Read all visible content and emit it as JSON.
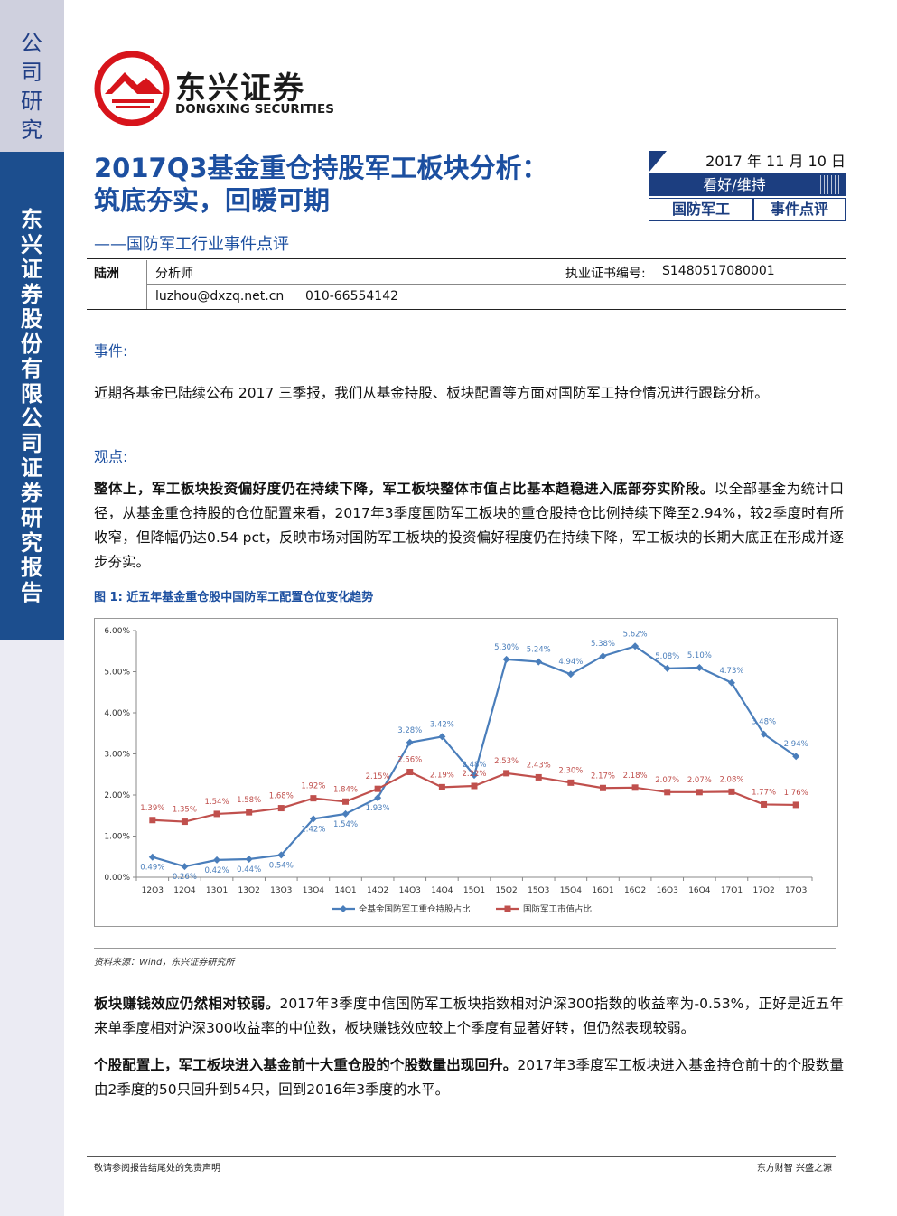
{
  "sidebar": {
    "top_label": "公司研究",
    "company_label": "东兴证券股份有限公司证券研究报告"
  },
  "brand": {
    "name_cn": "东兴证券",
    "name_en": "DONGXING SECURITIES",
    "logo_color": "#d7141b"
  },
  "header": {
    "title": "2017Q3基金重仓持股军工板块分析：筑底夯实，回暖可期",
    "subtitle": "——国防军工行业事件点评",
    "date": "2017 年 11 月 10 日",
    "rating": "看好/维持",
    "tag_industry": "国防军工",
    "tag_type": "事件点评"
  },
  "analyst": {
    "name": "陆洲",
    "role": "分析师",
    "cert_label": "执业证书编号:",
    "cert_no": "S1480517080001",
    "email": "luzhou@dxzq.net.cn",
    "phone": "010-66554142"
  },
  "body": {
    "event_head": "事件:",
    "event_text": "近期各基金已陆续公布 2017 三季报，我们从基金持股、板块配置等方面对国防军工持仓情况进行跟踪分析。",
    "view_head": "观点:",
    "p1_bold": "整体上，军工板块投资偏好度仍在持续下降，军工板块整体市值占比基本趋稳进入底部夯实阶段。",
    "p1_text": "以全部基金为统计口径，从基金重仓持股的仓位配置来看，2017年3季度国防军工板块的重仓股持仓比例持续下降至2.94%，较2季度时有所收窄，但降幅仍达0.54 pct，反映市场对国防军工板块的投资偏好程度仍在持续下降，军工板块的长期大底正在形成并逐步夯实。",
    "p2_bold": "板块赚钱效应仍然相对较弱。",
    "p2_text": "2017年3季度中信国防军工板块指数相对沪深300指数的收益率为-0.53%，正好是近五年来单季度相对沪深300收益率的中位数，板块赚钱效应较上个季度有显著好转，但仍然表现较弱。",
    "p3_bold": "个股配置上，军工板块进入基金前十大重仓股的个股数量出现回升。",
    "p3_text": "2017年3季度军工板块进入基金持仓前十的个股数量由2季度的50只回升到54只，回到2016年3季度的水平。"
  },
  "figure": {
    "caption": "图 1: 近五年基金重仓股中国防军工配置仓位变化趋势",
    "source": "资料来源：Wind，东兴证券研究所"
  },
  "chart_data": {
    "type": "line",
    "categories": [
      "12Q3",
      "12Q4",
      "13Q1",
      "13Q2",
      "13Q3",
      "13Q4",
      "14Q1",
      "14Q2",
      "14Q3",
      "14Q4",
      "15Q1",
      "15Q2",
      "15Q3",
      "15Q4",
      "16Q1",
      "16Q2",
      "16Q3",
      "16Q4",
      "17Q1",
      "17Q2",
      "17Q3"
    ],
    "series": [
      {
        "name": "全基金国防军工重仓持股占比",
        "color": "#4a7ebb",
        "marker": "diamond",
        "values": [
          0.49,
          0.26,
          0.42,
          0.44,
          0.54,
          1.42,
          1.54,
          1.93,
          3.28,
          3.42,
          2.48,
          5.3,
          5.24,
          4.94,
          5.38,
          5.62,
          5.08,
          5.1,
          4.73,
          3.48,
          2.94
        ],
        "labels": [
          "0.49%",
          "0.26%",
          "0.42%",
          "0.44%",
          "0.54%",
          "1.42%",
          "1.54%",
          "1.93%",
          "3.28%",
          "3.42%",
          "2.48%",
          "5.30%",
          "5.24%",
          "4.94%",
          "5.38%",
          "5.62%",
          "5.08%",
          "5.10%",
          "4.73%",
          "3.48%",
          "2.94%"
        ]
      },
      {
        "name": "国防军工市值占比",
        "color": "#c0504d",
        "marker": "square",
        "values": [
          1.39,
          1.35,
          1.54,
          1.58,
          1.68,
          1.92,
          1.84,
          2.15,
          2.56,
          2.19,
          2.22,
          2.53,
          2.43,
          2.3,
          2.17,
          2.18,
          2.07,
          2.07,
          2.08,
          1.77,
          1.76
        ],
        "labels": [
          "1.39%",
          "1.35%",
          "1.54%",
          "1.58%",
          "1.68%",
          "1.92%",
          "1.84%",
          "2.15%",
          "2.56%",
          "2.19%",
          "2.22%",
          "2.53%",
          "2.43%",
          "2.30%",
          "2.17%",
          "2.18%",
          "2.07%",
          "2.07%",
          "2.08%",
          "1.77%",
          "1.76%"
        ]
      }
    ],
    "ylim": [
      0,
      6
    ],
    "yticks": [
      "0.00%",
      "1.00%",
      "2.00%",
      "3.00%",
      "4.00%",
      "5.00%",
      "6.00%"
    ],
    "legend_position": "bottom",
    "grid": false
  },
  "footer": {
    "left": "敬请参阅报告结尾处的免责声明",
    "right": "东方财智   兴盛之源"
  }
}
